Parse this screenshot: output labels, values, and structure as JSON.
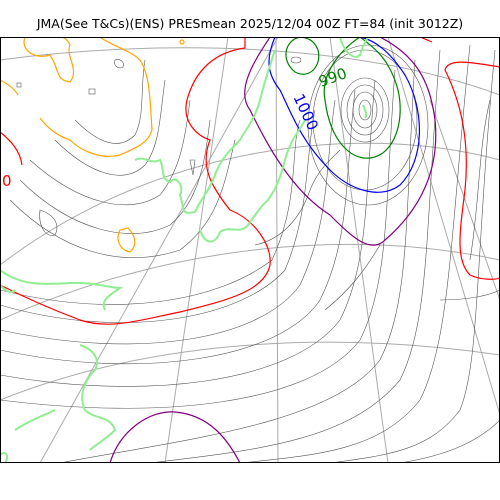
{
  "title": "JMA(See T&Cs)(ENS) PRESmean 2025/12/04 00Z FT=84 (init 3012Z)",
  "contour_labels": [
    {
      "text": "990",
      "color": "#008000"
    },
    {
      "text": "1000",
      "color": "#0000ff"
    },
    {
      "text": "0",
      "color": "#ff0000"
    }
  ],
  "colors": {
    "isobar": "#555555",
    "isobar_990": "#008000",
    "isobar_1000": "#0000ff",
    "isobar_1010": "#800080",
    "isobar_1020": "#ff0000",
    "coastline_green": "#90ee90",
    "coastline_orange": "#ffa500",
    "graticule": "#aaaaaa",
    "frame": "#000000"
  }
}
